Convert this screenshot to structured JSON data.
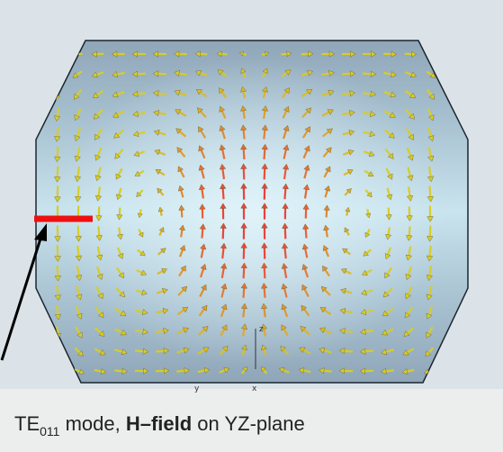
{
  "plot": {
    "axis_labels": [
      "z",
      "y",
      "x"
    ]
  },
  "caption": {
    "prefix": "TE",
    "subscript": "011",
    "middle": " mode, ",
    "bold": "H–field",
    "suffix": " on YZ-plane"
  }
}
